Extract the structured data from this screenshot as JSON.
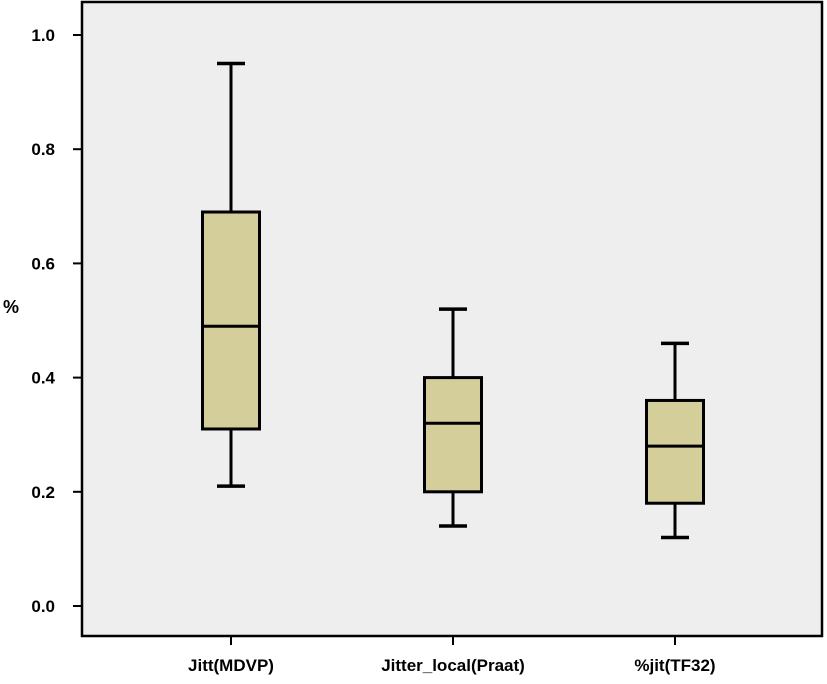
{
  "chart_data": {
    "type": "box",
    "title": "",
    "xlabel": "",
    "ylabel": "%",
    "ylim": [
      -0.05,
      1.06
    ],
    "yticks": [
      0.0,
      0.2,
      0.4,
      0.6,
      0.8,
      1.0
    ],
    "ytick_labels": [
      "0.0",
      "0.2",
      "0.4",
      "0.6",
      "0.8",
      "1.0"
    ],
    "grid": false,
    "categories": [
      "Jitt(MDVP)",
      "Jitter_local(Praat)",
      "%jit(TF32)"
    ],
    "boxes": [
      {
        "category": "Jitt(MDVP)",
        "whisker_low": 0.21,
        "q1": 0.31,
        "median": 0.49,
        "q3": 0.69,
        "whisker_high": 0.95
      },
      {
        "category": "Jitter_local(Praat)",
        "whisker_low": 0.14,
        "q1": 0.2,
        "median": 0.32,
        "q3": 0.4,
        "whisker_high": 0.52
      },
      {
        "category": "%jit(TF32)",
        "whisker_low": 0.12,
        "q1": 0.18,
        "median": 0.28,
        "q3": 0.36,
        "whisker_high": 0.46
      }
    ],
    "colors": {
      "box_fill": "#D3CE9A",
      "plot_background": "#EEEEEE",
      "line": "#000000"
    }
  }
}
